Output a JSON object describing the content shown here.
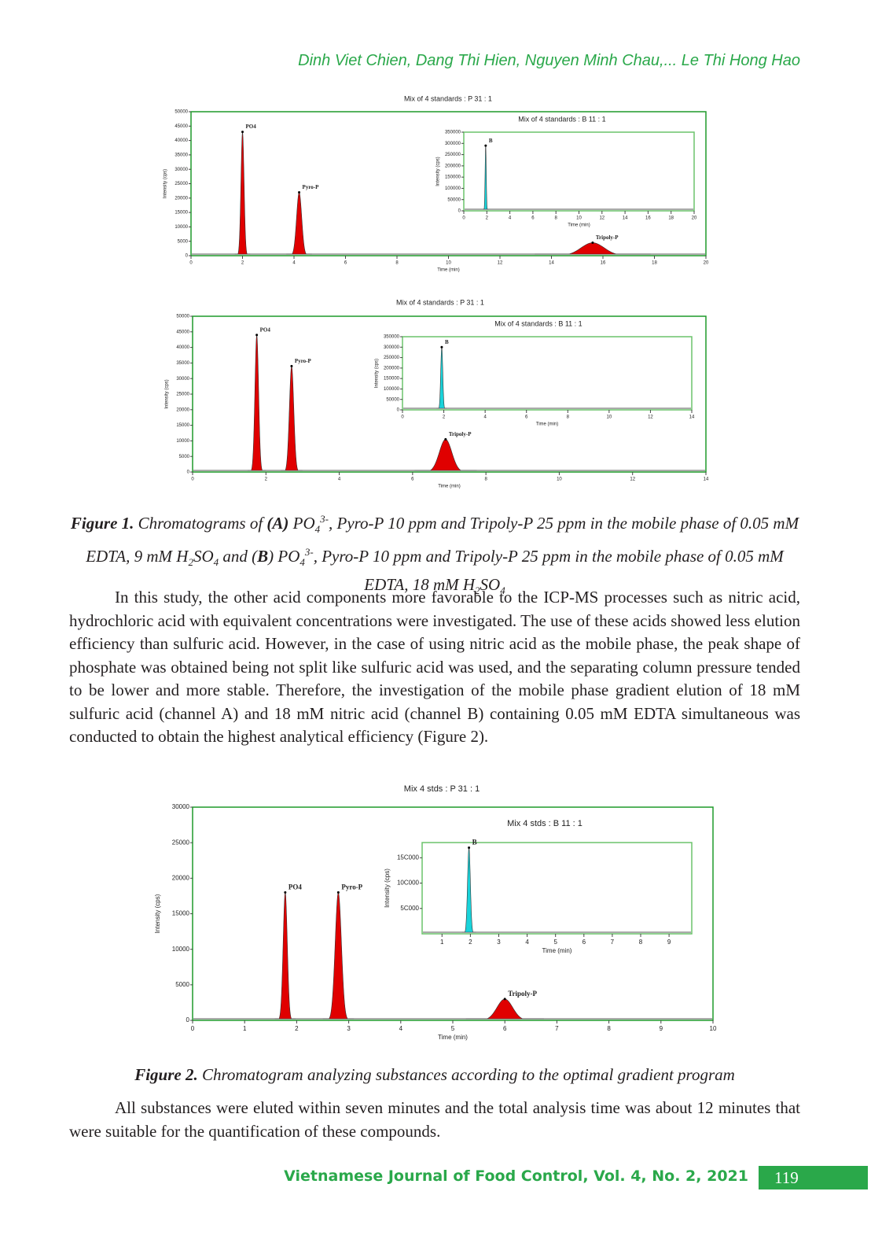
{
  "header": "Dinh Viet Chien, Dang Thi Hien, Nguyen Minh Chau,... Le Thi Hong Hao",
  "figures": [
    {
      "title": "Mix of 4 standards : P 31 : 1",
      "xlabel": "Time (min)",
      "ylabel": "Intensity (cps)",
      "xlim": [
        0,
        20
      ],
      "ylim": [
        0,
        50000
      ],
      "xticks": [
        0,
        2,
        4,
        6,
        8,
        10,
        12,
        14,
        16,
        18,
        20
      ],
      "yticks": [
        0,
        5000,
        10000,
        15000,
        20000,
        25000,
        30000,
        35000,
        40000,
        45000,
        50000
      ],
      "peaks": [
        {
          "label": "PO4",
          "x": 2,
          "y": 43000,
          "width": 0.06
        },
        {
          "label": "Pyro-P",
          "x": 4.2,
          "y": 22000,
          "width": 0.1
        },
        {
          "label": "Tripoly-P",
          "x": 15.6,
          "y": 4500,
          "width": 0.45
        }
      ],
      "inset": {
        "title": "Mix of 4 standards : B 11 : 1",
        "xlabel": "Time (min)",
        "ylabel": "Intensity (cps)",
        "xlim": [
          0,
          20
        ],
        "ylim": [
          0,
          350000
        ],
        "xticks": [
          0,
          2,
          4,
          6,
          8,
          10,
          12,
          14,
          16,
          18,
          20
        ],
        "yticks": [
          0,
          50000,
          100000,
          150000,
          200000,
          250000,
          300000,
          350000
        ],
        "peaks": [
          {
            "label": "B",
            "x": 1.9,
            "y": 290000,
            "width": 0.05
          }
        ]
      }
    },
    {
      "title": "Mix of 4 standards : P 31 : 1",
      "xlabel": "Time (min)",
      "ylabel": "Intensity (cps)",
      "xlim": [
        0,
        14
      ],
      "ylim": [
        0,
        50000
      ],
      "xticks": [
        0,
        2,
        4,
        6,
        8,
        10,
        12,
        14
      ],
      "yticks": [
        0,
        5000,
        10000,
        15000,
        20000,
        25000,
        30000,
        35000,
        40000,
        45000,
        50000
      ],
      "peaks": [
        {
          "label": "PO4",
          "x": 1.75,
          "y": 44000,
          "width": 0.05
        },
        {
          "label": "Pyro-P",
          "x": 2.7,
          "y": 34000,
          "width": 0.06
        },
        {
          "label": "Tripoly-P",
          "x": 6.9,
          "y": 10500,
          "width": 0.17
        }
      ],
      "inset": {
        "title": "Mix of 4 standards : B 11 : 1",
        "xlabel": "Time (min)",
        "ylabel": "Intensity (cps)",
        "xlim": [
          0,
          14
        ],
        "ylim": [
          0,
          350000
        ],
        "xticks": [
          0,
          2,
          4,
          6,
          8,
          10,
          12,
          14
        ],
        "yticks": [
          0,
          50000,
          100000,
          150000,
          200000,
          250000,
          300000,
          350000
        ],
        "peaks": [
          {
            "label": "B",
            "x": 1.9,
            "y": 300000,
            "width": 0.05
          }
        ]
      }
    },
    {
      "title": "Mix 4 stds : P 31 : 1",
      "xlabel": "Time (min)",
      "ylabel": "Intensity (cps)",
      "xlim": [
        0,
        10
      ],
      "ylim": [
        0,
        30000
      ],
      "xticks": [
        0,
        1,
        2,
        3,
        4,
        5,
        6,
        7,
        8,
        9,
        10
      ],
      "yticks": [
        0,
        5000,
        10000,
        15000,
        20000,
        25000,
        30000
      ],
      "peaks": [
        {
          "label": "PO4",
          "x": 1.78,
          "y": 18000,
          "width": 0.04
        },
        {
          "label": "Pyro-P",
          "x": 2.8,
          "y": 18000,
          "width": 0.06
        },
        {
          "label": "Tripoly-P",
          "x": 6.0,
          "y": 3000,
          "width": 0.15
        }
      ],
      "inset": {
        "title": "Mix 4 stds : B 11 : 1",
        "xlabel": "Time (min)",
        "ylabel": "Intensity (cps)",
        "xlim": [
          0.3,
          9.8
        ],
        "ylim": [
          0,
          180000
        ],
        "xticks": [
          1,
          2,
          3,
          4,
          5,
          6,
          7,
          8,
          9
        ],
        "yticks": [
          {
            "value": 50000,
            "label": "5C000"
          },
          {
            "value": 100000,
            "label": "10C000"
          },
          {
            "value": 150000,
            "label": "15C000"
          }
        ],
        "peaks": [
          {
            "label": "B",
            "x": 1.95,
            "y": 170000,
            "width": 0.05
          }
        ]
      }
    }
  ],
  "caption1": [
    {
      "text": "Figure 1.",
      "style": "bold"
    },
    {
      "text": " Chromatograms of "
    },
    {
      "text": "(A)",
      "style": "bold"
    },
    {
      "text": " PO"
    },
    {
      "text": "4",
      "style": "sub"
    },
    {
      "text": "3-",
      "style": "sup"
    },
    {
      "text": ", Pyro-P 10 ppm and Tripoly-P 25 ppm in the mobile phase of 0.05 mM EDTA, 9 mM H"
    },
    {
      "text": "2",
      "style": "sub"
    },
    {
      "text": "SO"
    },
    {
      "text": "4",
      "style": "sub"
    },
    {
      "text": " and ("
    },
    {
      "text": "B",
      "style": "bold"
    },
    {
      "text": ") PO"
    },
    {
      "text": "4",
      "style": "sub"
    },
    {
      "text": "3-",
      "style": "sup"
    },
    {
      "text": ", Pyro-P 10 ppm and Tripoly-P 25 ppm in the mobile phase of 0.05 mM EDTA, 18 mM H"
    },
    {
      "text": "2",
      "style": "sub"
    },
    {
      "text": "SO"
    },
    {
      "text": "4",
      "style": "sub"
    }
  ],
  "paragraph1": "In this study, the other acid components more favorable to the ICP-MS processes such as nitric acid, hydrochloric acid with equivalent concentrations were investigated. The use of these acids showed less elution efficiency than sulfuric acid. However, in the case of using nitric acid as the mobile phase, the peak shape of phosphate was obtained being not split like sulfuric acid was used, and the separating column pressure tended to be lower and more stable. Therefore, the investigation of the mobile phase gradient elution of 18 mM sulfuric acid (channel A) and 18 mM nitric acid (channel B) containing 0.05 mM EDTA simultaneous was conducted to obtain the highest analytical efficiency (Figure 2).",
  "caption2": [
    {
      "text": "Figure 2.",
      "style": "bold"
    },
    {
      "text": " Chromatogram analyzing substances according to the optimal gradient program"
    }
  ],
  "paragraph2": "All substances were eluted within seven minutes and the total analysis time was about 12 minutes that were suitable for the quantification of these compounds.",
  "footer": {
    "journal": "Vietnamese Journal of Food Control, Vol. 4, No. 2, 2021",
    "page": "119"
  }
}
